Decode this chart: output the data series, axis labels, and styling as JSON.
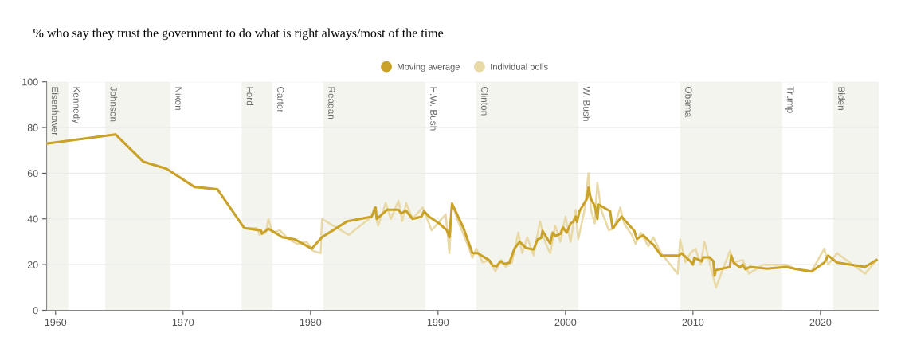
{
  "chart_data": {
    "type": "line",
    "title": "% who say they trust the government to do what is right always/most of the time",
    "xlim": [
      1959.3,
      2024.6
    ],
    "xticks": [
      1960,
      1970,
      1980,
      1990,
      2000,
      2010,
      2020
    ],
    "ylim": [
      0,
      100
    ],
    "yticks": [
      0,
      20,
      40,
      60,
      80,
      100
    ],
    "annotations": [
      {
        "text": "Kennedy",
        "x": 1961.0,
        "y": 98
      },
      {
        "text": "Nixon",
        "x": 1969.0,
        "y": 98
      },
      {
        "text": "Carter",
        "x": 1977.0,
        "y": 98
      },
      {
        "text": "H.W. Bush",
        "x": 1989.0,
        "y": 98
      },
      {
        "text": "W. Bush",
        "x": 2001.0,
        "y": 98
      },
      {
        "text": "Trump",
        "x": 2017.0,
        "y": 98
      }
    ],
    "grid": "y",
    "legend": "top",
    "marker": "none",
    "line_style": "solid",
    "bands": [
      {
        "axis": "x",
        "from": 1959.3,
        "to": 1961.0,
        "label": "Eisenhower",
        "color": "#f4f4ee"
      },
      {
        "axis": "x",
        "from": 1963.9,
        "to": 1969.0,
        "label": "Johnson",
        "color": "#f4f4ee"
      },
      {
        "axis": "x",
        "from": 1974.6,
        "to": 1977.0,
        "label": "Ford",
        "color": "#f4f4ee"
      },
      {
        "axis": "x",
        "from": 1981.0,
        "to": 1989.0,
        "label": "Reagan",
        "color": "#f4f4ee"
      },
      {
        "axis": "x",
        "from": 1993.0,
        "to": 2001.0,
        "label": "Clinton",
        "color": "#f4f4ee"
      },
      {
        "axis": "x",
        "from": 2009.0,
        "to": 2017.0,
        "label": "Obama",
        "color": "#f4f4ee"
      },
      {
        "axis": "x",
        "from": 2021.0,
        "to": 2024.6,
        "label": "Biden",
        "color": "#f4f4ee"
      }
    ],
    "series": [
      {
        "name": "Individual polls",
        "color": "#e8d9a6",
        "x": [
          1959.3,
          1964.7,
          1966.9,
          1968.7,
          1970.9,
          1972.7,
          1974.8,
          1975.8,
          1976.0,
          1976.5,
          1976.7,
          1977.0,
          1977.6,
          1978.3,
          1979.0,
          1979.7,
          1980.2,
          1980.8,
          1980.9,
          1981.2,
          1983.0,
          1984.8,
          1985.0,
          1985.3,
          1985.9,
          1986.3,
          1986.9,
          1987.2,
          1987.5,
          1988.0,
          1988.8,
          1989.5,
          1990.6,
          1990.9,
          1991.1,
          1991.5,
          1992.3,
          1992.7,
          1993.0,
          1993.5,
          1994.0,
          1994.5,
          1995.0,
          1995.3,
          1995.8,
          1996.3,
          1996.6,
          1997.0,
          1997.5,
          1998.0,
          1998.4,
          1998.8,
          1999.2,
          1999.6,
          2000.0,
          2000.4,
          2000.8,
          2001.0,
          2001.5,
          2001.8,
          2002.0,
          2002.3,
          2002.5,
          2002.8,
          2003.4,
          2003.8,
          2004.3,
          2004.6,
          2005.2,
          2005.5,
          2005.9,
          2006.5,
          2006.9,
          2007.5,
          2008.8,
          2009.0,
          2009.4,
          2009.8,
          2010.2,
          2010.6,
          2010.9,
          2011.3,
          2011.8,
          2012.9,
          2013.2,
          2013.9,
          2014.4,
          2015.5,
          2017.3,
          2018.1,
          2019.3,
          2020.3,
          2020.6,
          2021.3,
          2023.5,
          2024.4
        ],
        "values": [
          73,
          77,
          65,
          62,
          54,
          53,
          36,
          36,
          33,
          34,
          40,
          34,
          35,
          31,
          29,
          30,
          26,
          25,
          40,
          39,
          33,
          41,
          45,
          37,
          47,
          40,
          48,
          39,
          47,
          40,
          45,
          35,
          42,
          25,
          47,
          40,
          29,
          23,
          27,
          21,
          22,
          17,
          22,
          19,
          21,
          34,
          25,
          32,
          24,
          39,
          30,
          25,
          37,
          30,
          41,
          30,
          44,
          31,
          44,
          60,
          44,
          38,
          56,
          44,
          35,
          36,
          45,
          38,
          33,
          29,
          34,
          28,
          32,
          25,
          16,
          31,
          21,
          25,
          27,
          20,
          30,
          21,
          10,
          26,
          21,
          22,
          16,
          20,
          20,
          18,
          17,
          27,
          20,
          25,
          16,
          22
        ]
      },
      {
        "name": "Moving average",
        "color": "#c9a227",
        "x": [
          1959.3,
          1964.7,
          1966.9,
          1968.7,
          1970.9,
          1972.7,
          1974.8,
          1976.1,
          1976.2,
          1976.7,
          1977.8,
          1978.8,
          1980.1,
          1980.9,
          1982.9,
          1984.8,
          1985.1,
          1985.2,
          1986.0,
          1986.9,
          1987.1,
          1987.5,
          1988.0,
          1988.7,
          1988.9,
          1989.3,
          1990.1,
          1990.7,
          1990.9,
          1991.1,
          1992.0,
          1992.7,
          1993.1,
          1994.0,
          1994.3,
          1994.6,
          1994.9,
          1995.2,
          1995.6,
          1996.0,
          1996.4,
          1996.9,
          1997.5,
          1997.8,
          1998.1,
          1998.2,
          1998.8,
          1999.0,
          1999.2,
          1999.6,
          1999.8,
          2000.1,
          2000.4,
          2000.6,
          2000.8,
          2000.9,
          2001.1,
          2001.7,
          2001.8,
          2002.0,
          2002.3,
          2002.5,
          2002.6,
          2003.5,
          2003.7,
          2004.4,
          2005.4,
          2005.6,
          2006.1,
          2006.6,
          2006.9,
          2007.5,
          2008.9,
          2009.1,
          2009.8,
          2010.0,
          2010.1,
          2010.7,
          2010.8,
          2011.3,
          2011.6,
          2011.7,
          2011.8,
          2012.9,
          2013.0,
          2013.2,
          2013.7,
          2013.9,
          2014.1,
          2014.5,
          2015.8,
          2017.3,
          2018.1,
          2019.3,
          2020.3,
          2020.6,
          2021.3,
          2023.5,
          2024.4
        ],
        "values": [
          73,
          77,
          65,
          62,
          54,
          53,
          36,
          35,
          33.6,
          35.7,
          32,
          31,
          27,
          32,
          39,
          41,
          45,
          40,
          44,
          44,
          42.4,
          43.6,
          40,
          41,
          43.4,
          41,
          38,
          35,
          32,
          46.7,
          36,
          25,
          25,
          22,
          19.6,
          19.3,
          21.5,
          20.3,
          20.8,
          27,
          30,
          27.3,
          26.6,
          31,
          31.7,
          34.8,
          29.3,
          34,
          32.5,
          33.4,
          36.3,
          34,
          38,
          38.7,
          41,
          38.7,
          43.4,
          49,
          53.7,
          48.7,
          45.7,
          40,
          46.3,
          43.4,
          35.8,
          41,
          34.8,
          31.3,
          32.8,
          30.1,
          28.7,
          24,
          24,
          25,
          21.5,
          20,
          23,
          21.5,
          23.2,
          23.2,
          21.5,
          15.2,
          17.6,
          19,
          24,
          20.8,
          18.8,
          20,
          18,
          19,
          18.2,
          19,
          18,
          17,
          20.9,
          24,
          20.9,
          19,
          22
        ]
      }
    ]
  }
}
